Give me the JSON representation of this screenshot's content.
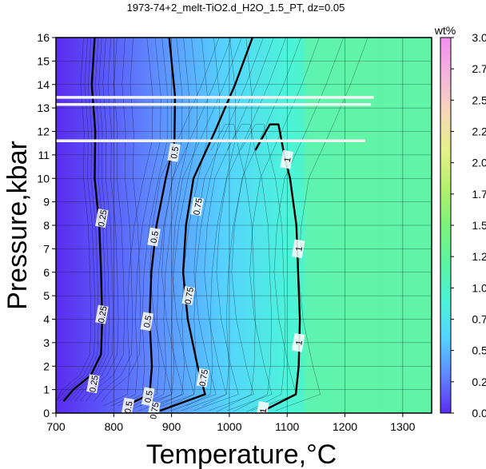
{
  "chart_data": {
    "type": "heatmap",
    "title": "1973-74+2_melt-TiO2.d_H2O_1.5_PT, dz=0.05",
    "xlabel": "Temperature,°C",
    "ylabel": "Pressure,kbar",
    "xlim": [
      700,
      1350
    ],
    "ylim": [
      0,
      16
    ],
    "x_ticks": [
      700,
      800,
      900,
      1000,
      1100,
      1200,
      1300
    ],
    "y_ticks": [
      0,
      1,
      2,
      3,
      4,
      5,
      6,
      7,
      8,
      9,
      10,
      11,
      12,
      13,
      14,
      15,
      16
    ],
    "grid": true,
    "colorbar": {
      "label": "wt%",
      "range": [
        0,
        3
      ],
      "ticks": [
        "0.00",
        "0.25",
        "0.50",
        "0.75",
        "1.00",
        "1.25",
        "1.50",
        "1.75",
        "2.00",
        "2.25",
        "2.50",
        "2.75",
        "3.00"
      ],
      "colors": [
        "#5a2cf0",
        "#5f86ff",
        "#55d3ff",
        "#4cf4d8",
        "#5cf5a2",
        "#7cf27c",
        "#b5f06c",
        "#e5f08a",
        "#f6d8b8",
        "#f4b4dd",
        "#f28ff0"
      ]
    },
    "contour_levels": [
      0.25,
      0.5,
      0.75,
      1
    ],
    "contours": [
      {
        "level": 0.25,
        "points": [
          [
            713,
            0.5
          ],
          [
            730,
            1.0
          ],
          [
            760,
            1.6
          ],
          [
            778,
            2.5
          ],
          [
            780,
            4.0
          ],
          [
            778,
            6.0
          ],
          [
            775,
            8.0
          ],
          [
            767,
            10.0
          ],
          [
            768,
            12.0
          ],
          [
            762,
            14.0
          ],
          [
            767,
            16.0
          ]
        ],
        "labels": [
          [
            765,
            1.25
          ],
          [
            780,
            4.2
          ],
          [
            780,
            8.3
          ]
        ]
      },
      {
        "level": 0.5,
        "points": [
          [
            820,
            0.3
          ],
          [
            862,
            0.8
          ],
          [
            866,
            2.0
          ],
          [
            862,
            4.0
          ],
          [
            865,
            6.0
          ],
          [
            874,
            8.0
          ],
          [
            890,
            10.0
          ],
          [
            905,
            11.6
          ],
          [
            906,
            13.5
          ],
          [
            896,
            16.0
          ]
        ],
        "labels": [
          [
            825,
            0.25
          ],
          [
            860,
            0.7
          ],
          [
            858,
            3.9
          ],
          [
            870,
            7.5
          ],
          [
            905,
            11.1
          ]
        ]
      },
      {
        "level": 0.75,
        "points": [
          [
            880,
            0.1
          ],
          [
            958,
            0.8
          ],
          [
            945,
            2.0
          ],
          [
            928,
            4.0
          ],
          [
            920,
            6.0
          ],
          [
            925,
            8.0
          ],
          [
            938,
            10.0
          ],
          [
            975,
            12.0
          ],
          [
            1010,
            14.0
          ],
          [
            1040,
            16.0
          ]
        ],
        "labels": [
          [
            930,
            5.0
          ],
          [
            945,
            8.8
          ],
          [
            955,
            1.5
          ],
          [
            870,
            0.1
          ]
        ]
      },
      {
        "level": 1,
        "points": [
          [
            1055,
            0.05
          ],
          [
            1115,
            0.8
          ],
          [
            1120,
            2.0
          ],
          [
            1122,
            4.0
          ],
          [
            1119,
            6.0
          ],
          [
            1116,
            8.0
          ],
          [
            1105,
            10.0
          ],
          [
            1095,
            11.0
          ],
          [
            1085,
            12.3
          ],
          [
            1070,
            12.3
          ],
          [
            1045,
            11.2
          ]
        ],
        "labels": [
          [
            1058,
            0.1
          ],
          [
            1120,
            3.0
          ],
          [
            1120,
            7.0
          ],
          [
            1100,
            10.8
          ]
        ]
      }
    ],
    "white_lines": [
      {
        "p": 13.45,
        "x0": 700,
        "x1": 1250
      },
      {
        "p": 13.15,
        "x0": 700,
        "x1": 1245
      },
      {
        "p": 11.6,
        "x0": 700,
        "x1": 1235
      }
    ]
  }
}
